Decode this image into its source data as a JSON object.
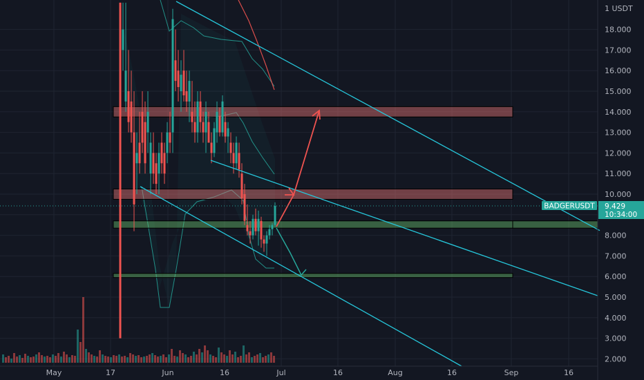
{
  "chart_data": {
    "type": "candlestick",
    "title": "",
    "unit_label": "USDT",
    "ticker": "BADGERUSDT",
    "last_price": "9.429",
    "countdown": "10:34:00",
    "ylim": [
      1.8,
      19.3
    ],
    "y_ticks": [
      "1",
      "18.000",
      "17.000",
      "16.000",
      "15.000",
      "14.000",
      "13.000",
      "12.000",
      "11.000",
      "10.000",
      "9.000",
      "8.000",
      "7.000",
      "6.000",
      "5.000",
      "4.000",
      "3.000",
      "2.000"
    ],
    "x_ticks": [
      "May",
      "17",
      "Jun",
      "16",
      "Jul",
      "16",
      "Aug",
      "16",
      "Sep",
      "16"
    ],
    "zones": [
      {
        "name": "resistance-upper",
        "ymin": 13.75,
        "ymax": 14.25,
        "color": "#e57373"
      },
      {
        "name": "resistance-lower",
        "ymin": 9.75,
        "ymax": 10.25,
        "color": "#e57373"
      },
      {
        "name": "support-upper",
        "ymin": 8.35,
        "ymax": 8.7,
        "color": "#66bb6a"
      },
      {
        "name": "support-lower",
        "ymin": 5.95,
        "ymax": 6.15,
        "color": "#66bb6a"
      }
    ],
    "colors": {
      "up": "#26a69a",
      "down": "#ef5350",
      "line": "#26c6da",
      "arrow": "#ef5350",
      "projection": "#26a69a",
      "background": "#131722",
      "axis_text": "#b2b5be"
    }
  }
}
